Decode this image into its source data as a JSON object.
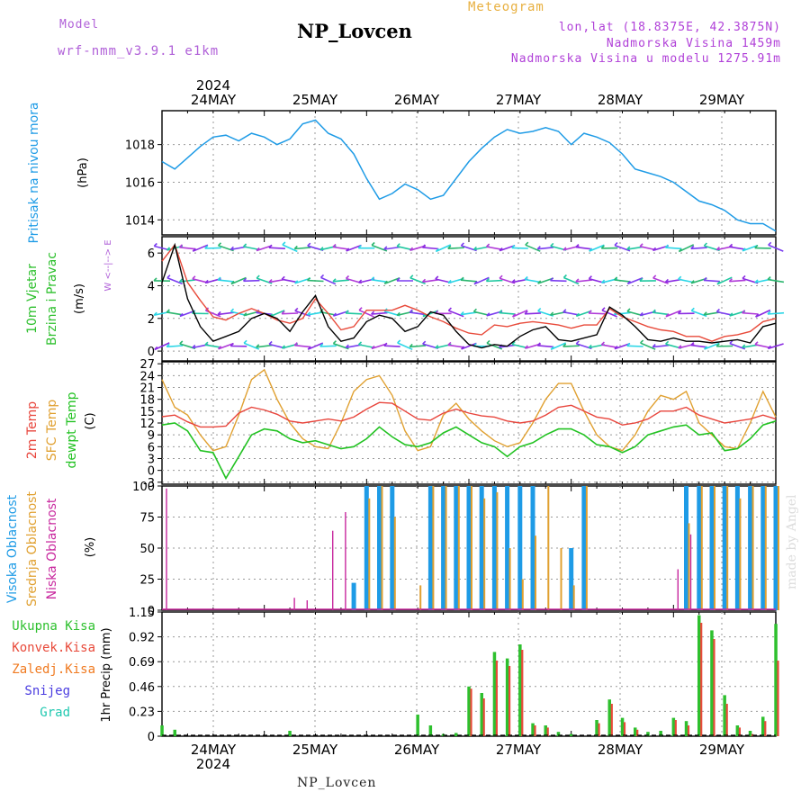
{
  "header": {
    "model_label": "Model",
    "model_name": "wrf-nmm_v3.9.1 e1km",
    "title": "NP_Lovcen",
    "meteogram_label": "Meteogram",
    "lonlat": "lon,lat (18.8375E, 42.3875N)",
    "altitude": "Nadmorska Visina 1459m",
    "model_altitude": "Nadmorska Visina u modelu 1275.91m"
  },
  "footer": {
    "station": "NP_Lovcen",
    "watermark": "made by Angel"
  },
  "colors": {
    "pressure": "#1e9be6",
    "wind_speed": "#000000",
    "gust": "#e84a3a",
    "t2m": "#e8453c",
    "tsfc": "#e0a030",
    "dewpt": "#22c222",
    "cloud_high": "#1e9be6",
    "cloud_mid": "#e0a030",
    "cloud_low": "#c8289e",
    "precip_total": "#2ec02e",
    "precip_conv": "#e84a3a",
    "precip_frz": "#f07a20",
    "snow": "#4a3ce0",
    "graupel": "#20c8b0",
    "model_label": "#b060d8",
    "meteogram_label": "#e8b040",
    "info_text": "#b040d8",
    "wind_axis_label": "#b060d8"
  },
  "chart_data": [
    {
      "type": "line",
      "id": "pressure",
      "ylabel_parts": [
        "Pritisak na nivou mora",
        "(hPa)"
      ],
      "yticks": [
        1014,
        1016,
        1018
      ],
      "ylim": [
        1013.2,
        1019.8
      ],
      "top_labels": {
        "year": "2024",
        "days": [
          "24MAY",
          "25MAY",
          "26MAY",
          "27MAY",
          "28MAY",
          "29MAY"
        ]
      },
      "x_hours": [
        0,
        3,
        6,
        9,
        12,
        15,
        18,
        21,
        24,
        27,
        30,
        33,
        36,
        39,
        42,
        45,
        48,
        51,
        54,
        57,
        60,
        63,
        66,
        69,
        72,
        75,
        78,
        81,
        84,
        87,
        90,
        93,
        96,
        99,
        102,
        105,
        108,
        111,
        114,
        117,
        120,
        123,
        126,
        129,
        132,
        135,
        138,
        141,
        144
      ],
      "values": [
        1017.1,
        1016.7,
        1017.3,
        1017.9,
        1018.4,
        1018.5,
        1018.2,
        1018.6,
        1018.4,
        1018.0,
        1018.3,
        1019.1,
        1019.3,
        1018.6,
        1018.3,
        1017.5,
        1016.2,
        1015.1,
        1015.4,
        1015.9,
        1015.6,
        1015.1,
        1015.3,
        1016.2,
        1017.1,
        1017.8,
        1018.4,
        1018.8,
        1018.6,
        1018.7,
        1018.9,
        1018.7,
        1018.0,
        1018.6,
        1018.4,
        1018.1,
        1017.5,
        1016.7,
        1016.5,
        1016.3,
        1016.0,
        1015.5,
        1015.0,
        1014.8,
        1014.5,
        1014.0,
        1013.8,
        1013.8,
        1013.4
      ]
    },
    {
      "type": "line",
      "id": "wind",
      "ylabel_parts": [
        "10m Vjetar",
        "Brzina i Pravac",
        "(m/s)"
      ],
      "direction_label": "W <--|--> E",
      "yticks": [
        0,
        2,
        4,
        6
      ],
      "ylim": [
        -0.6,
        7.0
      ],
      "x_hours": [
        0,
        3,
        6,
        9,
        12,
        15,
        18,
        21,
        24,
        27,
        30,
        33,
        36,
        39,
        42,
        45,
        48,
        51,
        54,
        57,
        60,
        63,
        66,
        69,
        72,
        75,
        78,
        81,
        84,
        87,
        90,
        93,
        96,
        99,
        102,
        105,
        108,
        111,
        114,
        117,
        120,
        123,
        126,
        129,
        132,
        135,
        138,
        141,
        144
      ],
      "series": [
        {
          "values": [
            4.2,
            6.5,
            3.2,
            1.5,
            0.6,
            0.9,
            1.2,
            2.0,
            2.3,
            2.0,
            1.2,
            2.4,
            3.4,
            1.5,
            0.6,
            0.8,
            1.8,
            2.2,
            2.0,
            1.2,
            1.5,
            2.4,
            2.2,
            1.2,
            0.4,
            0.2,
            0.4,
            0.3,
            0.9,
            1.3,
            1.5,
            0.7,
            0.6,
            0.8,
            1.0,
            2.7,
            2.2,
            1.5,
            0.7,
            0.6,
            0.8,
            0.6,
            0.6,
            0.5,
            0.6,
            0.7,
            0.5,
            1.5,
            1.7
          ]
        },
        {
          "values": [
            5.5,
            6.5,
            4.2,
            3.1,
            2.1,
            1.9,
            2.3,
            2.6,
            2.3,
            1.9,
            1.7,
            2.0,
            3.2,
            2.3,
            1.3,
            1.5,
            2.5,
            2.5,
            2.5,
            2.8,
            2.5,
            2.1,
            1.8,
            1.4,
            1.1,
            1.0,
            1.6,
            1.5,
            1.7,
            1.8,
            1.7,
            1.6,
            1.4,
            1.6,
            1.6,
            2.6,
            2.1,
            1.8,
            1.5,
            1.3,
            1.2,
            0.9,
            0.9,
            0.6,
            0.9,
            1.0,
            1.2,
            1.8,
            2.0
          ]
        }
      ]
    },
    {
      "type": "line",
      "id": "temperature",
      "ylabel_parts": [
        "2m Temp",
        "SFC Temp",
        "dewpt Temp",
        "(C)"
      ],
      "yticks": [
        -3,
        0,
        3,
        6,
        9,
        12,
        15,
        18,
        21,
        24,
        27
      ],
      "ylim": [
        -3.5,
        27.5
      ],
      "x_hours": [
        0,
        3,
        6,
        9,
        12,
        15,
        18,
        21,
        24,
        27,
        30,
        33,
        36,
        39,
        42,
        45,
        48,
        51,
        54,
        57,
        60,
        63,
        66,
        69,
        72,
        75,
        78,
        81,
        84,
        87,
        90,
        93,
        96,
        99,
        102,
        105,
        108,
        111,
        114,
        117,
        120,
        123,
        126,
        129,
        132,
        135,
        138,
        141,
        144
      ],
      "series": [
        {
          "values": [
            13.6,
            14.0,
            12.3,
            11.0,
            11.0,
            11.2,
            14.5,
            16.0,
            15.3,
            14.2,
            12.5,
            12.0,
            12.5,
            13.0,
            12.5,
            13.5,
            15.5,
            17.2,
            17.0,
            15.0,
            13.0,
            12.7,
            14.5,
            15.5,
            14.5,
            13.8,
            13.5,
            12.5,
            12.0,
            12.5,
            14.0,
            16.0,
            16.5,
            15.0,
            13.5,
            13.0,
            11.5,
            12.0,
            13.0,
            15.0,
            15.0,
            16.0,
            14.0,
            13.0,
            12.0,
            12.5,
            13.0,
            14.0,
            13.0
          ]
        },
        {
          "values": [
            23.0,
            16.0,
            14.0,
            9.0,
            5.0,
            6.0,
            14.0,
            23.0,
            25.5,
            18.0,
            12.0,
            8.0,
            6.0,
            5.5,
            12.0,
            20.0,
            23.0,
            24.0,
            19.0,
            10.0,
            5.0,
            6.0,
            14.0,
            17.0,
            13.0,
            10.0,
            7.5,
            6.0,
            7.0,
            12.0,
            18.0,
            22.0,
            22.0,
            15.0,
            9.0,
            6.0,
            5.0,
            9.0,
            15.0,
            19.0,
            18.0,
            20.0,
            12.0,
            9.0,
            6.0,
            5.5,
            12.0,
            20.0,
            13.5
          ]
        },
        {
          "values": [
            11.5,
            12.0,
            10.0,
            5.0,
            4.5,
            -2.0,
            3.5,
            9.0,
            10.5,
            10.0,
            8.0,
            7.0,
            7.5,
            6.5,
            5.5,
            6.0,
            8.0,
            11.0,
            8.5,
            6.5,
            6.0,
            7.0,
            9.5,
            11.0,
            9.0,
            7.0,
            6.0,
            3.5,
            6.0,
            7.0,
            9.0,
            10.5,
            10.5,
            9.0,
            6.5,
            6.0,
            4.5,
            6.0,
            9.0,
            10.0,
            11.0,
            11.5,
            9.0,
            9.5,
            5.0,
            5.5,
            8.0,
            11.5,
            12.5
          ]
        }
      ]
    },
    {
      "type": "bar",
      "id": "cloud",
      "ylabel_parts": [
        "Visoka Oblacnost",
        "Srednja Oblacnost",
        "Niska Oblacnost",
        "(%)"
      ],
      "yticks": [
        0,
        25,
        50,
        75,
        100
      ],
      "ylim": [
        0,
        100
      ],
      "x_hours": [
        0,
        3,
        6,
        9,
        12,
        15,
        18,
        21,
        24,
        27,
        30,
        33,
        36,
        39,
        42,
        45,
        48,
        51,
        54,
        57,
        60,
        63,
        66,
        69,
        72,
        75,
        78,
        81,
        84,
        87,
        90,
        93,
        96,
        99,
        102,
        105,
        108,
        111,
        114,
        117,
        120,
        123,
        126,
        129,
        132,
        135,
        138,
        141,
        144
      ],
      "series": [
        {
          "values": [
            0,
            0,
            0,
            0,
            0,
            0,
            0,
            0,
            0,
            0,
            0,
            0,
            0,
            0,
            0,
            22,
            100,
            100,
            100,
            0,
            0,
            100,
            100,
            100,
            100,
            100,
            100,
            100,
            100,
            100,
            0,
            0,
            50,
            100,
            0,
            0,
            0,
            0,
            0,
            0,
            0,
            100,
            100,
            100,
            100,
            100,
            100,
            100,
            100
          ]
        },
        {
          "values": [
            0,
            0,
            0,
            0,
            0,
            0,
            0,
            0,
            0,
            0,
            0,
            0,
            0,
            0,
            0,
            0,
            90,
            100,
            75,
            0,
            20,
            100,
            100,
            100,
            100,
            90,
            95,
            50,
            25,
            60,
            100,
            50,
            20,
            100,
            0,
            0,
            0,
            0,
            0,
            0,
            0,
            70,
            100,
            100,
            100,
            90,
            100,
            100,
            100
          ]
        },
        {
          "values": [
            98,
            0,
            0,
            0,
            0,
            0,
            0,
            0,
            0,
            0,
            10,
            8,
            0,
            64,
            79,
            0,
            0,
            0,
            0,
            0,
            0,
            0,
            0,
            0,
            0,
            0,
            0,
            0,
            0,
            0,
            0,
            0,
            0,
            0,
            0,
            0,
            0,
            0,
            0,
            0,
            33,
            61,
            0,
            0,
            0,
            0,
            0,
            0,
            0
          ]
        }
      ]
    },
    {
      "type": "bar",
      "id": "precip",
      "ylabel_parts": [
        "1hr Precip (mm)"
      ],
      "legend": [
        "Ukupna Kisa",
        "Konvek.Kisa",
        "Zaledj.Kisa",
        "Snijeg",
        "Grad"
      ],
      "yticks": [
        0,
        0.23,
        0.46,
        0.69,
        0.92,
        1.15
      ],
      "ylim": [
        0,
        1.15
      ],
      "bottom_labels": {
        "year": "2024",
        "days": [
          "24MAY",
          "25MAY",
          "26MAY",
          "27MAY",
          "28MAY",
          "29MAY"
        ]
      },
      "x_hours": [
        0,
        3,
        6,
        9,
        12,
        15,
        18,
        21,
        24,
        27,
        30,
        33,
        36,
        39,
        42,
        45,
        48,
        51,
        54,
        57,
        60,
        63,
        66,
        69,
        72,
        75,
        78,
        81,
        84,
        87,
        90,
        93,
        96,
        99,
        102,
        105,
        108,
        111,
        114,
        117,
        120,
        123,
        126,
        129,
        132,
        135,
        138,
        141,
        144
      ],
      "series": [
        {
          "values": [
            0.1,
            0.06,
            0,
            0,
            0,
            0,
            0,
            0,
            0,
            0,
            0.05,
            0,
            0,
            0,
            0,
            0,
            0,
            0,
            0,
            0,
            0.2,
            0.1,
            0.02,
            0.03,
            0.46,
            0.4,
            0.78,
            0.72,
            0.85,
            0.12,
            0.1,
            0.04,
            0.02,
            0,
            0.15,
            0.34,
            0.17,
            0.08,
            0.04,
            0.05,
            0.17,
            0.14,
            1.12,
            0.98,
            0.38,
            0.1,
            0.05,
            0.18,
            1.04
          ]
        },
        {
          "values": [
            0,
            0,
            0,
            0,
            0,
            0,
            0,
            0,
            0,
            0,
            0,
            0,
            0,
            0,
            0,
            0,
            0,
            0,
            0,
            0,
            0,
            0,
            0,
            0,
            0.44,
            0.35,
            0.7,
            0.65,
            0.8,
            0.1,
            0.08,
            0,
            0,
            0,
            0.12,
            0.3,
            0.13,
            0.06,
            0,
            0,
            0.15,
            0.1,
            1.05,
            0.9,
            0.3,
            0.08,
            0.02,
            0.14,
            0.7
          ]
        }
      ]
    }
  ]
}
